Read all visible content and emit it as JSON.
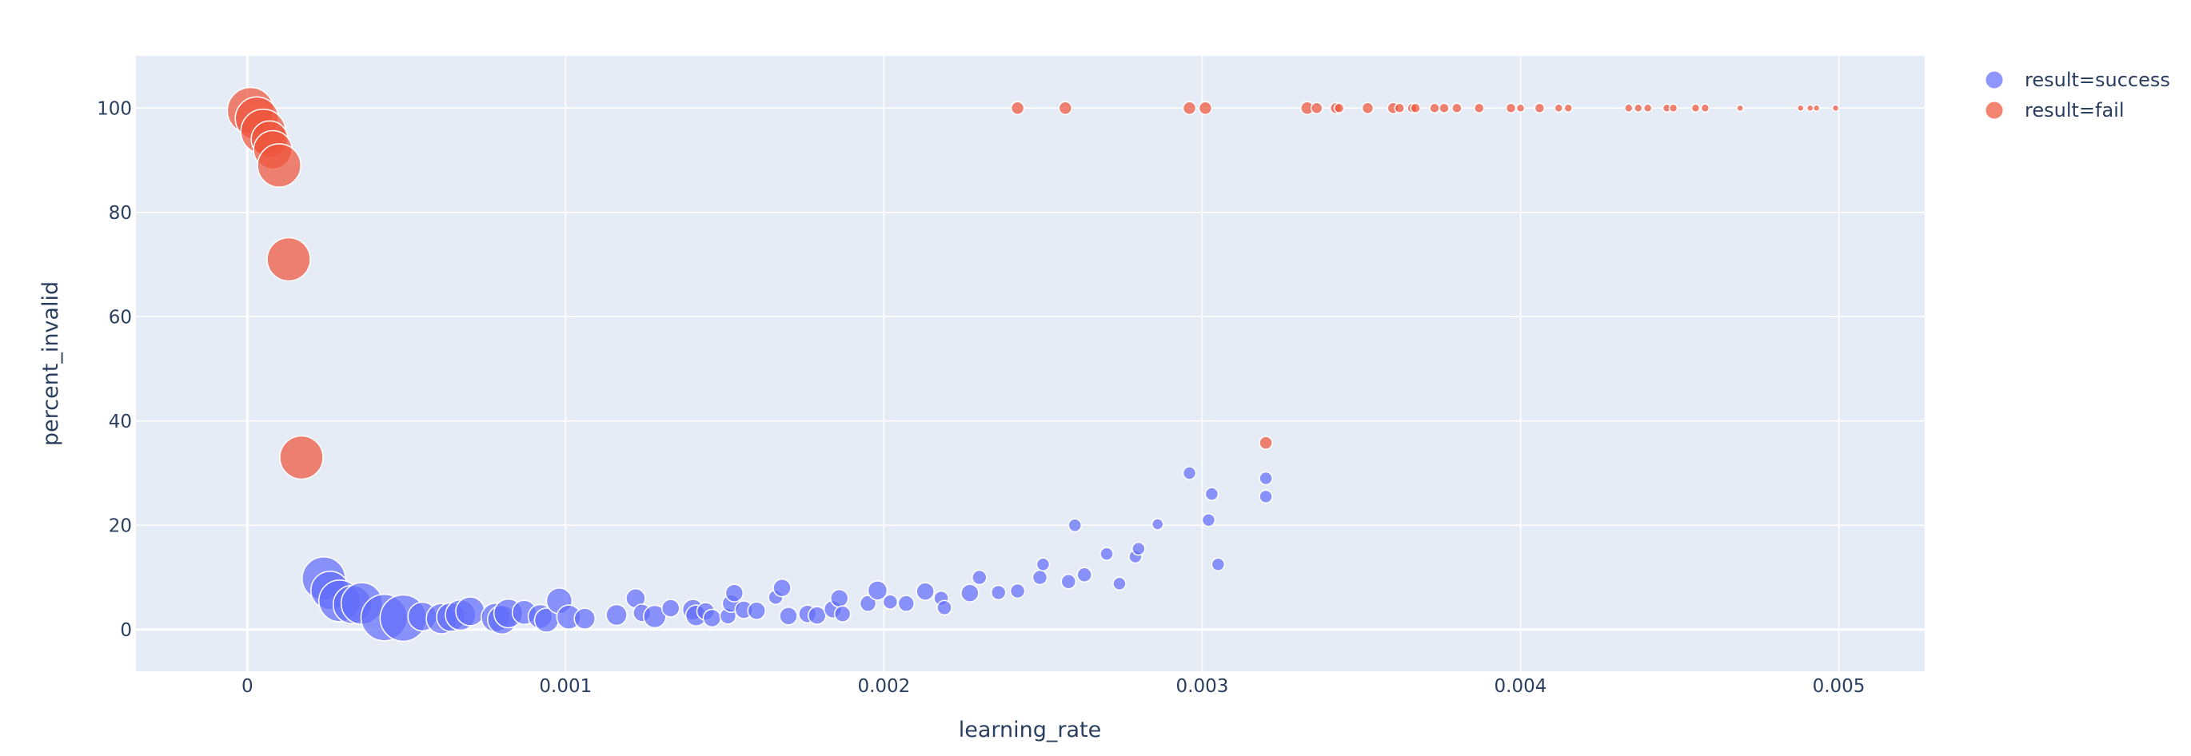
{
  "chart_data": {
    "type": "scatter",
    "xlabel": "learning_rate",
    "ylabel": "percent_invalid",
    "xlim": [
      -0.00035,
      0.00527
    ],
    "ylim": [
      -8,
      110
    ],
    "x_ticks": [
      0,
      0.001,
      0.002,
      0.003,
      0.004,
      0.005
    ],
    "x_tick_labels": [
      "0",
      "0.001",
      "0.002",
      "0.003",
      "0.004",
      "0.005"
    ],
    "y_ticks": [
      0,
      20,
      40,
      60,
      80,
      100
    ],
    "y_tick_labels": [
      "0",
      "20",
      "40",
      "60",
      "80",
      "100"
    ],
    "grid": true,
    "legend_position": "top-right",
    "series": [
      {
        "name": "result=success",
        "color": "#636efa",
        "points": [
          [
            0.00024,
            9.8,
            27
          ],
          [
            0.00026,
            7.5,
            24
          ],
          [
            0.00029,
            5.5,
            26
          ],
          [
            0.00033,
            4.8,
            24
          ],
          [
            0.00036,
            5,
            26
          ],
          [
            0.00043,
            2.3,
            29
          ],
          [
            0.00049,
            2.2,
            29
          ],
          [
            0.00055,
            2.5,
            18
          ],
          [
            0.00061,
            2.1,
            19
          ],
          [
            0.00064,
            2.4,
            18
          ],
          [
            0.00067,
            2.8,
            19
          ],
          [
            0.0007,
            3.5,
            18
          ],
          [
            0.00078,
            2.3,
            18
          ],
          [
            0.0008,
            1.9,
            18
          ],
          [
            0.00082,
            3.1,
            18
          ],
          [
            0.00087,
            3.3,
            15
          ],
          [
            0.00092,
            2.5,
            15
          ],
          [
            0.00094,
            1.8,
            15
          ],
          [
            0.00098,
            5.5,
            16
          ],
          [
            0.00101,
            2.4,
            15
          ],
          [
            0.00106,
            2.1,
            13
          ],
          [
            0.00116,
            2.8,
            13
          ],
          [
            0.00122,
            6,
            12
          ],
          [
            0.00124,
            3.2,
            11
          ],
          [
            0.00128,
            2.5,
            14
          ],
          [
            0.00133,
            4.1,
            11
          ],
          [
            0.0014,
            3.8,
            13
          ],
          [
            0.00141,
            2.7,
            13
          ],
          [
            0.00144,
            3.5,
            11
          ],
          [
            0.00146,
            2.2,
            11
          ],
          [
            0.00151,
            2.6,
            10
          ],
          [
            0.00152,
            5,
            11
          ],
          [
            0.00153,
            7,
            11
          ],
          [
            0.00156,
            3.8,
            11
          ],
          [
            0.0016,
            3.6,
            11
          ],
          [
            0.00166,
            6.2,
            9
          ],
          [
            0.00168,
            8,
            11
          ],
          [
            0.0017,
            2.6,
            11
          ],
          [
            0.00176,
            3,
            11
          ],
          [
            0.00179,
            2.7,
            11
          ],
          [
            0.00184,
            3.9,
            11
          ],
          [
            0.00186,
            6,
            11
          ],
          [
            0.00187,
            3,
            10
          ],
          [
            0.00195,
            5,
            10
          ],
          [
            0.00198,
            7.5,
            12
          ],
          [
            0.00202,
            5.3,
            9
          ],
          [
            0.00207,
            5,
            10
          ],
          [
            0.00213,
            7.3,
            11
          ],
          [
            0.00218,
            6,
            9
          ],
          [
            0.00219,
            4.2,
            9
          ],
          [
            0.00227,
            7,
            11
          ],
          [
            0.0023,
            10,
            9
          ],
          [
            0.00236,
            7.1,
            9
          ],
          [
            0.00242,
            7.4,
            9
          ],
          [
            0.00249,
            10,
            9
          ],
          [
            0.0025,
            12.5,
            8
          ],
          [
            0.00258,
            9.2,
            9
          ],
          [
            0.0026,
            20,
            8
          ],
          [
            0.00263,
            10.5,
            9
          ],
          [
            0.0027,
            14.5,
            8
          ],
          [
            0.00274,
            8.8,
            8
          ],
          [
            0.00279,
            14,
            8
          ],
          [
            0.0028,
            15.5,
            8
          ],
          [
            0.00286,
            20.2,
            7
          ],
          [
            0.00296,
            30,
            8
          ],
          [
            0.00302,
            21,
            8
          ],
          [
            0.00303,
            26,
            8
          ],
          [
            0.00305,
            12.5,
            8
          ],
          [
            0.0032,
            29,
            8
          ],
          [
            0.0032,
            25.5,
            8
          ]
        ]
      },
      {
        "name": "result=fail",
        "color": "#EF553B",
        "points": [
          [
            1e-05,
            99.5,
            29
          ],
          [
            3e-05,
            98,
            27
          ],
          [
            5e-05,
            95.5,
            28
          ],
          [
            7e-05,
            94,
            23
          ],
          [
            8e-05,
            92,
            24
          ],
          [
            0.0001,
            89,
            27
          ],
          [
            0.00013,
            71,
            27
          ],
          [
            0.00017,
            33,
            27
          ],
          [
            0.00242,
            100,
            8
          ],
          [
            0.00257,
            100,
            8
          ],
          [
            0.00296,
            100,
            8
          ],
          [
            0.00301,
            100,
            8
          ],
          [
            0.0032,
            35.8,
            8
          ],
          [
            0.00333,
            100,
            8
          ],
          [
            0.00336,
            100,
            7
          ],
          [
            0.00342,
            100,
            7
          ],
          [
            0.00343,
            100,
            6
          ],
          [
            0.00352,
            100,
            7
          ],
          [
            0.0036,
            100,
            7
          ],
          [
            0.00362,
            100,
            6
          ],
          [
            0.00366,
            100,
            6
          ],
          [
            0.00367,
            100,
            6
          ],
          [
            0.00373,
            100,
            6
          ],
          [
            0.00376,
            100,
            6
          ],
          [
            0.0038,
            100,
            6
          ],
          [
            0.00387,
            100,
            6
          ],
          [
            0.00397,
            100,
            6
          ],
          [
            0.004,
            100,
            5
          ],
          [
            0.00406,
            100,
            6
          ],
          [
            0.00412,
            100,
            5
          ],
          [
            0.00415,
            100,
            5
          ],
          [
            0.00434,
            100,
            5
          ],
          [
            0.00437,
            100,
            5
          ],
          [
            0.0044,
            100,
            5
          ],
          [
            0.00446,
            100,
            5
          ],
          [
            0.00448,
            100,
            5
          ],
          [
            0.00455,
            100,
            5
          ],
          [
            0.00458,
            100,
            5
          ],
          [
            0.00469,
            100,
            4
          ],
          [
            0.00488,
            100,
            4
          ],
          [
            0.00491,
            100,
            4
          ],
          [
            0.00493,
            100,
            4
          ],
          [
            0.00499,
            100,
            4
          ]
        ]
      }
    ]
  }
}
